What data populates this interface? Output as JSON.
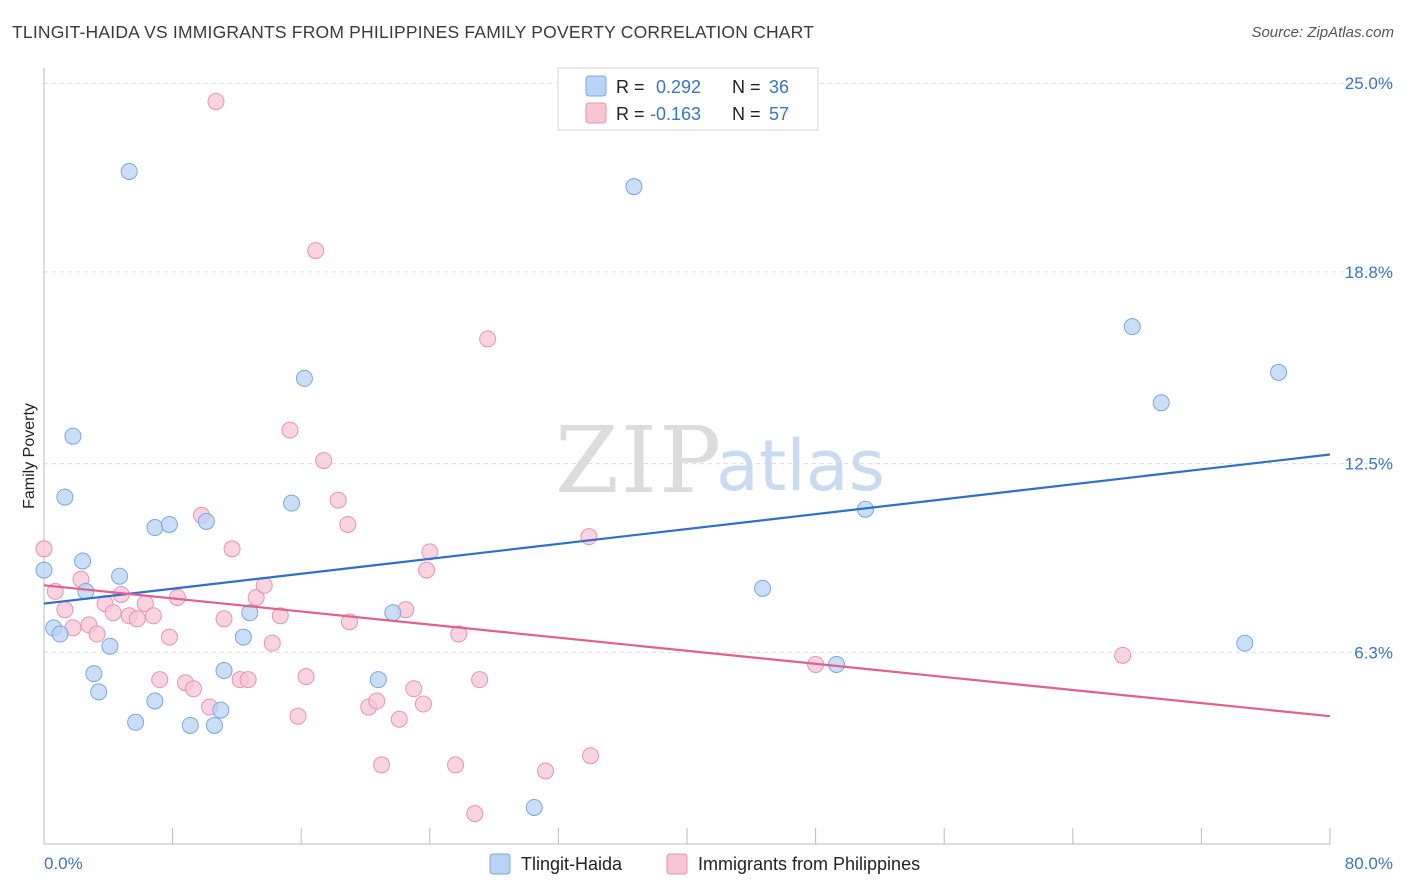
{
  "title": "TLINGIT-HAIDA VS IMMIGRANTS FROM PHILIPPINES FAMILY POVERTY CORRELATION CHART",
  "source": "Source: ZipAtlas.com",
  "watermark": {
    "zip": "ZIP",
    "atlas": "atlas"
  },
  "legend_top": [
    {
      "r_label": "R =",
      "r_value": "0.292",
      "n_label": "N =",
      "n_value": "36"
    },
    {
      "r_label": "R =",
      "r_value": "-0.163",
      "n_label": "N =",
      "n_value": "57"
    }
  ],
  "legend_bottom": [
    "Tlingit-Haida",
    "Immigrants from Philippines"
  ],
  "colors": {
    "blue_fill": "#b8d3f5",
    "blue_stroke": "#7aa8e0",
    "blue_line": "#2f6fcc",
    "pink_fill": "#f7c6d5",
    "pink_stroke": "#eb92b0",
    "pink_line": "#e0608e",
    "tick_label": "#3a74c8"
  },
  "chart_data": {
    "type": "scatter",
    "title": "TLINGIT-HAIDA VS IMMIGRANTS FROM PHILIPPINES FAMILY POVERTY CORRELATION CHART",
    "xlabel": "",
    "ylabel": "Family Poverty",
    "xlim": [
      0,
      80
    ],
    "ylim": [
      0,
      25.5
    ],
    "y_ticks": [
      6.3,
      12.5,
      18.8,
      25.0
    ],
    "y_tick_labels": [
      "6.3%",
      "12.5%",
      "18.8%",
      "25.0%"
    ],
    "x_tick_labels": [
      "0.0%",
      "80.0%"
    ],
    "grid": true,
    "legend_position": "top-center",
    "series": [
      {
        "name": "Tlingit-Haida",
        "r": 0.292,
        "n": 36,
        "trend": [
          [
            0,
            7.9
          ],
          [
            80,
            12.8
          ]
        ],
        "points": [
          [
            0.0,
            9.0
          ],
          [
            0.6,
            7.1
          ],
          [
            1.0,
            6.9
          ],
          [
            1.3,
            11.4
          ],
          [
            1.8,
            13.4
          ],
          [
            2.4,
            9.3
          ],
          [
            2.6,
            8.3
          ],
          [
            3.1,
            5.6
          ],
          [
            3.4,
            5.0
          ],
          [
            4.1,
            6.5
          ],
          [
            4.7,
            8.8
          ],
          [
            5.7,
            4.0
          ],
          [
            5.3,
            22.1
          ],
          [
            6.9,
            4.7
          ],
          [
            6.9,
            10.4
          ],
          [
            7.8,
            10.5
          ],
          [
            9.1,
            3.9
          ],
          [
            10.1,
            10.6
          ],
          [
            10.6,
            3.9
          ],
          [
            11.0,
            4.4
          ],
          [
            11.2,
            5.7
          ],
          [
            12.4,
            6.8
          ],
          [
            12.8,
            7.6
          ],
          [
            15.4,
            11.2
          ],
          [
            16.2,
            15.3
          ],
          [
            20.8,
            5.4
          ],
          [
            21.7,
            7.6
          ],
          [
            30.5,
            1.2
          ],
          [
            36.7,
            21.6
          ],
          [
            44.7,
            8.4
          ],
          [
            49.3,
            5.9
          ],
          [
            51.1,
            11.0
          ],
          [
            67.7,
            17.0
          ],
          [
            69.5,
            14.5
          ],
          [
            76.8,
            15.5
          ],
          [
            74.7,
            6.6
          ]
        ]
      },
      {
        "name": "Immigrants from Philippines",
        "r": -0.163,
        "n": 57,
        "trend": [
          [
            0,
            8.5
          ],
          [
            80,
            4.2
          ]
        ],
        "points": [
          [
            0.0,
            9.7
          ],
          [
            0.7,
            8.3
          ],
          [
            1.3,
            7.7
          ],
          [
            1.8,
            7.1
          ],
          [
            2.3,
            8.7
          ],
          [
            2.8,
            7.2
          ],
          [
            3.3,
            6.9
          ],
          [
            3.8,
            7.9
          ],
          [
            4.3,
            7.6
          ],
          [
            4.8,
            8.2
          ],
          [
            5.3,
            7.5
          ],
          [
            5.8,
            7.4
          ],
          [
            6.3,
            7.9
          ],
          [
            6.8,
            7.5
          ],
          [
            7.2,
            5.4
          ],
          [
            7.8,
            6.8
          ],
          [
            8.3,
            8.1
          ],
          [
            8.8,
            5.3
          ],
          [
            9.3,
            5.1
          ],
          [
            9.8,
            10.8
          ],
          [
            10.3,
            4.5
          ],
          [
            10.7,
            24.4
          ],
          [
            11.2,
            7.4
          ],
          [
            11.7,
            9.7
          ],
          [
            12.2,
            5.4
          ],
          [
            12.7,
            5.4
          ],
          [
            13.2,
            8.1
          ],
          [
            13.7,
            8.5
          ],
          [
            14.2,
            6.6
          ],
          [
            14.7,
            7.5
          ],
          [
            15.3,
            13.6
          ],
          [
            15.8,
            4.2
          ],
          [
            16.3,
            5.5
          ],
          [
            16.9,
            19.5
          ],
          [
            17.4,
            12.6
          ],
          [
            18.3,
            11.3
          ],
          [
            18.9,
            10.5
          ],
          [
            19.0,
            7.3
          ],
          [
            20.2,
            4.5
          ],
          [
            20.7,
            4.7
          ],
          [
            21.0,
            2.6
          ],
          [
            22.1,
            4.1
          ],
          [
            22.5,
            7.7
          ],
          [
            23.0,
            5.1
          ],
          [
            23.6,
            4.6
          ],
          [
            23.8,
            9.0
          ],
          [
            24.0,
            9.6
          ],
          [
            25.8,
            6.9
          ],
          [
            25.6,
            2.6
          ],
          [
            26.8,
            1.0
          ],
          [
            27.1,
            5.4
          ],
          [
            27.6,
            16.6
          ],
          [
            31.2,
            2.4
          ],
          [
            33.9,
            10.1
          ],
          [
            34.0,
            2.9
          ],
          [
            48.0,
            5.9
          ],
          [
            67.1,
            6.2
          ]
        ]
      }
    ]
  }
}
